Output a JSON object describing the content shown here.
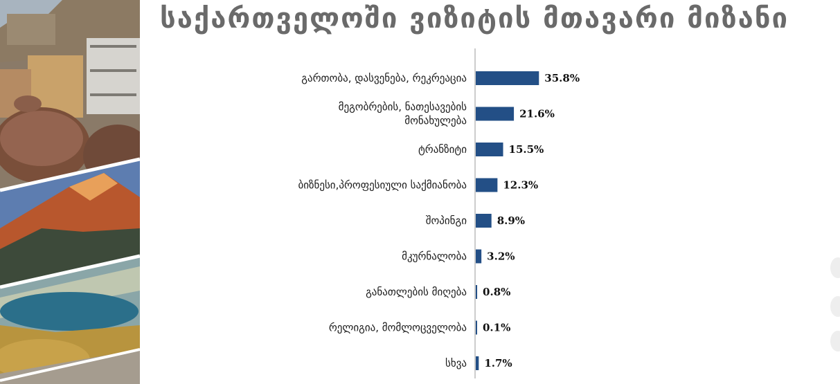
{
  "title": "საქართველოში ვიზიტის მთავარი მიზანი",
  "colors": {
    "bar": "#234f86",
    "title": "#6a6a6a"
  },
  "collage": {
    "images": [
      "old-city-photo",
      "mountain-photo",
      "lake-photo"
    ]
  },
  "chart_data": {
    "type": "bar",
    "orientation": "horizontal",
    "categories": [
      [
        "გართობა, დასვენება, რეკრეაცია"
      ],
      [
        "მეგობრების, ნათესავების",
        "მონახულება"
      ],
      [
        "ტრანზიტი"
      ],
      [
        "ბიზნესი,პროფესიული საქმიანობა"
      ],
      [
        "შოპინგი"
      ],
      [
        "მკურნალობა"
      ],
      [
        "განათლების მიღება"
      ],
      [
        "რელიგია, მომლოცველობა"
      ],
      [
        "სხვა"
      ]
    ],
    "values": [
      35.8,
      21.6,
      15.5,
      12.3,
      8.9,
      3.2,
      0.8,
      0.1,
      1.7
    ],
    "value_labels": [
      "35.8%",
      "21.6%",
      "15.5%",
      "12.3%",
      "8.9%",
      "3.2%",
      "0.8%",
      "0.1%",
      "1.7%"
    ],
    "xlim": [
      0,
      100
    ],
    "grid": false,
    "legend": "none"
  }
}
